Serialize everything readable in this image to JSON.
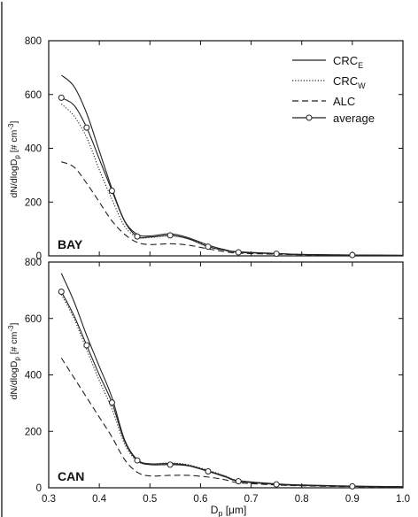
{
  "figure": {
    "xlabel_base": "D",
    "xlabel_sub": "p",
    "xlabel_unit": "[μm]",
    "ylabel_main": "dN/dlogD",
    "ylabel_sub": "p",
    "ylabel_unit": "[# cm",
    "ylabel_sup": "-3",
    "ylabel_close": "]"
  },
  "legend": {
    "placement": "top-right",
    "entries": [
      {
        "key": "CRC_E",
        "base": "CRC",
        "sub": "E",
        "style": "solid"
      },
      {
        "key": "CRC_W",
        "base": "CRC",
        "sub": "W",
        "style": "dotted"
      },
      {
        "key": "ALC",
        "base": "ALC",
        "sub": "",
        "style": "dashed"
      },
      {
        "key": "average",
        "base": "average",
        "sub": "",
        "style": "solid-circles"
      }
    ]
  },
  "colors": {
    "line": "#222222",
    "axis": "#111111",
    "marker_fill": "#ffffff"
  },
  "chart_data": [
    {
      "type": "line",
      "panel_label": "BAY",
      "xlim": [
        0.3,
        1.0
      ],
      "ylim": [
        0,
        800
      ],
      "xticks": [
        0.3,
        0.4,
        0.5,
        0.6,
        0.7,
        0.8,
        0.9,
        1.0
      ],
      "yticks": [
        0,
        200,
        400,
        600,
        800
      ],
      "show_x_tick_labels": false,
      "grid": false,
      "series": [
        {
          "name": "CRC_E",
          "style": "solid",
          "x": [
            0.325,
            0.35,
            0.375,
            0.4,
            0.425,
            0.45,
            0.475,
            0.5,
            0.54,
            0.575,
            0.615,
            0.65,
            0.675,
            0.75,
            0.8,
            0.9,
            1.0
          ],
          "y": [
            672,
            630,
            530,
            390,
            250,
            130,
            80,
            74,
            82,
            68,
            40,
            22,
            15,
            9,
            5,
            3,
            2
          ]
        },
        {
          "name": "CRC_W",
          "style": "dotted",
          "x": [
            0.325,
            0.35,
            0.375,
            0.4,
            0.425,
            0.45,
            0.475,
            0.5,
            0.54,
            0.575,
            0.615,
            0.65,
            0.675,
            0.75,
            0.8,
            0.9,
            1.0
          ],
          "y": [
            565,
            520,
            440,
            320,
            210,
            110,
            70,
            68,
            75,
            64,
            38,
            21,
            14,
            9,
            5,
            3,
            2
          ]
        },
        {
          "name": "ALC",
          "style": "dashed",
          "x": [
            0.325,
            0.35,
            0.375,
            0.4,
            0.425,
            0.45,
            0.475,
            0.5,
            0.54,
            0.575,
            0.615,
            0.65,
            0.675,
            0.75,
            0.8,
            0.9,
            1.0
          ],
          "y": [
            350,
            330,
            270,
            200,
            130,
            80,
            50,
            42,
            45,
            40,
            26,
            15,
            10,
            6,
            4,
            2,
            1
          ]
        },
        {
          "name": "average",
          "style": "solid-circles",
          "x": [
            0.325,
            0.35,
            0.375,
            0.4,
            0.425,
            0.45,
            0.475,
            0.5,
            0.54,
            0.575,
            0.615,
            0.65,
            0.675,
            0.75,
            0.8,
            0.9,
            1.0
          ],
          "y": [
            588,
            560,
            477,
            360,
            242,
            128,
            72,
            70,
            76,
            64,
            34,
            20,
            13,
            8,
            5,
            3,
            2
          ],
          "markers": [
            0.325,
            0.375,
            0.425,
            0.475,
            0.54,
            0.615,
            0.675,
            0.75,
            0.9
          ]
        }
      ]
    },
    {
      "type": "line",
      "panel_label": "CAN",
      "xlim": [
        0.3,
        1.0
      ],
      "ylim": [
        0,
        800
      ],
      "xticks": [
        0.3,
        0.4,
        0.5,
        0.6,
        0.7,
        0.8,
        0.9,
        1.0
      ],
      "xtick_labels": [
        "0.3",
        "0.4",
        "0.5",
        "0.6",
        "0.7",
        "0.8",
        "0.9",
        "1.0"
      ],
      "yticks": [
        0,
        200,
        400,
        600,
        800
      ],
      "show_x_tick_labels": true,
      "grid": false,
      "series": [
        {
          "name": "CRC_E",
          "style": "solid",
          "x": [
            0.325,
            0.35,
            0.375,
            0.4,
            0.425,
            0.45,
            0.475,
            0.5,
            0.54,
            0.575,
            0.615,
            0.65,
            0.675,
            0.75,
            0.8,
            0.9,
            1.0
          ],
          "y": [
            760,
            660,
            540,
            430,
            320,
            170,
            100,
            85,
            86,
            80,
            60,
            40,
            25,
            14,
            10,
            6,
            4
          ]
        },
        {
          "name": "CRC_W",
          "style": "dotted",
          "x": [
            0.325,
            0.35,
            0.375,
            0.4,
            0.425,
            0.45,
            0.475,
            0.5,
            0.54,
            0.575,
            0.615,
            0.65,
            0.675,
            0.75,
            0.8,
            0.9,
            1.0
          ],
          "y": [
            685,
            600,
            490,
            380,
            280,
            155,
            95,
            85,
            88,
            82,
            62,
            41,
            26,
            14,
            10,
            6,
            4
          ]
        },
        {
          "name": "ALC",
          "style": "dashed",
          "x": [
            0.325,
            0.35,
            0.375,
            0.4,
            0.425,
            0.45,
            0.475,
            0.5,
            0.54,
            0.575,
            0.615,
            0.65,
            0.675,
            0.75,
            0.8,
            0.9,
            1.0
          ],
          "y": [
            460,
            390,
            320,
            250,
            180,
            100,
            55,
            42,
            44,
            44,
            38,
            28,
            18,
            10,
            7,
            4,
            3
          ]
        },
        {
          "name": "average",
          "style": "solid-circles",
          "x": [
            0.325,
            0.35,
            0.375,
            0.4,
            0.425,
            0.45,
            0.475,
            0.5,
            0.54,
            0.575,
            0.615,
            0.65,
            0.675,
            0.75,
            0.8,
            0.9,
            1.0
          ],
          "y": [
            695,
            610,
            505,
            400,
            302,
            165,
            97,
            82,
            82,
            78,
            58,
            38,
            23,
            12,
            8,
            5,
            3
          ],
          "markers": [
            0.325,
            0.375,
            0.425,
            0.475,
            0.54,
            0.615,
            0.675,
            0.75,
            0.9
          ]
        }
      ]
    }
  ]
}
